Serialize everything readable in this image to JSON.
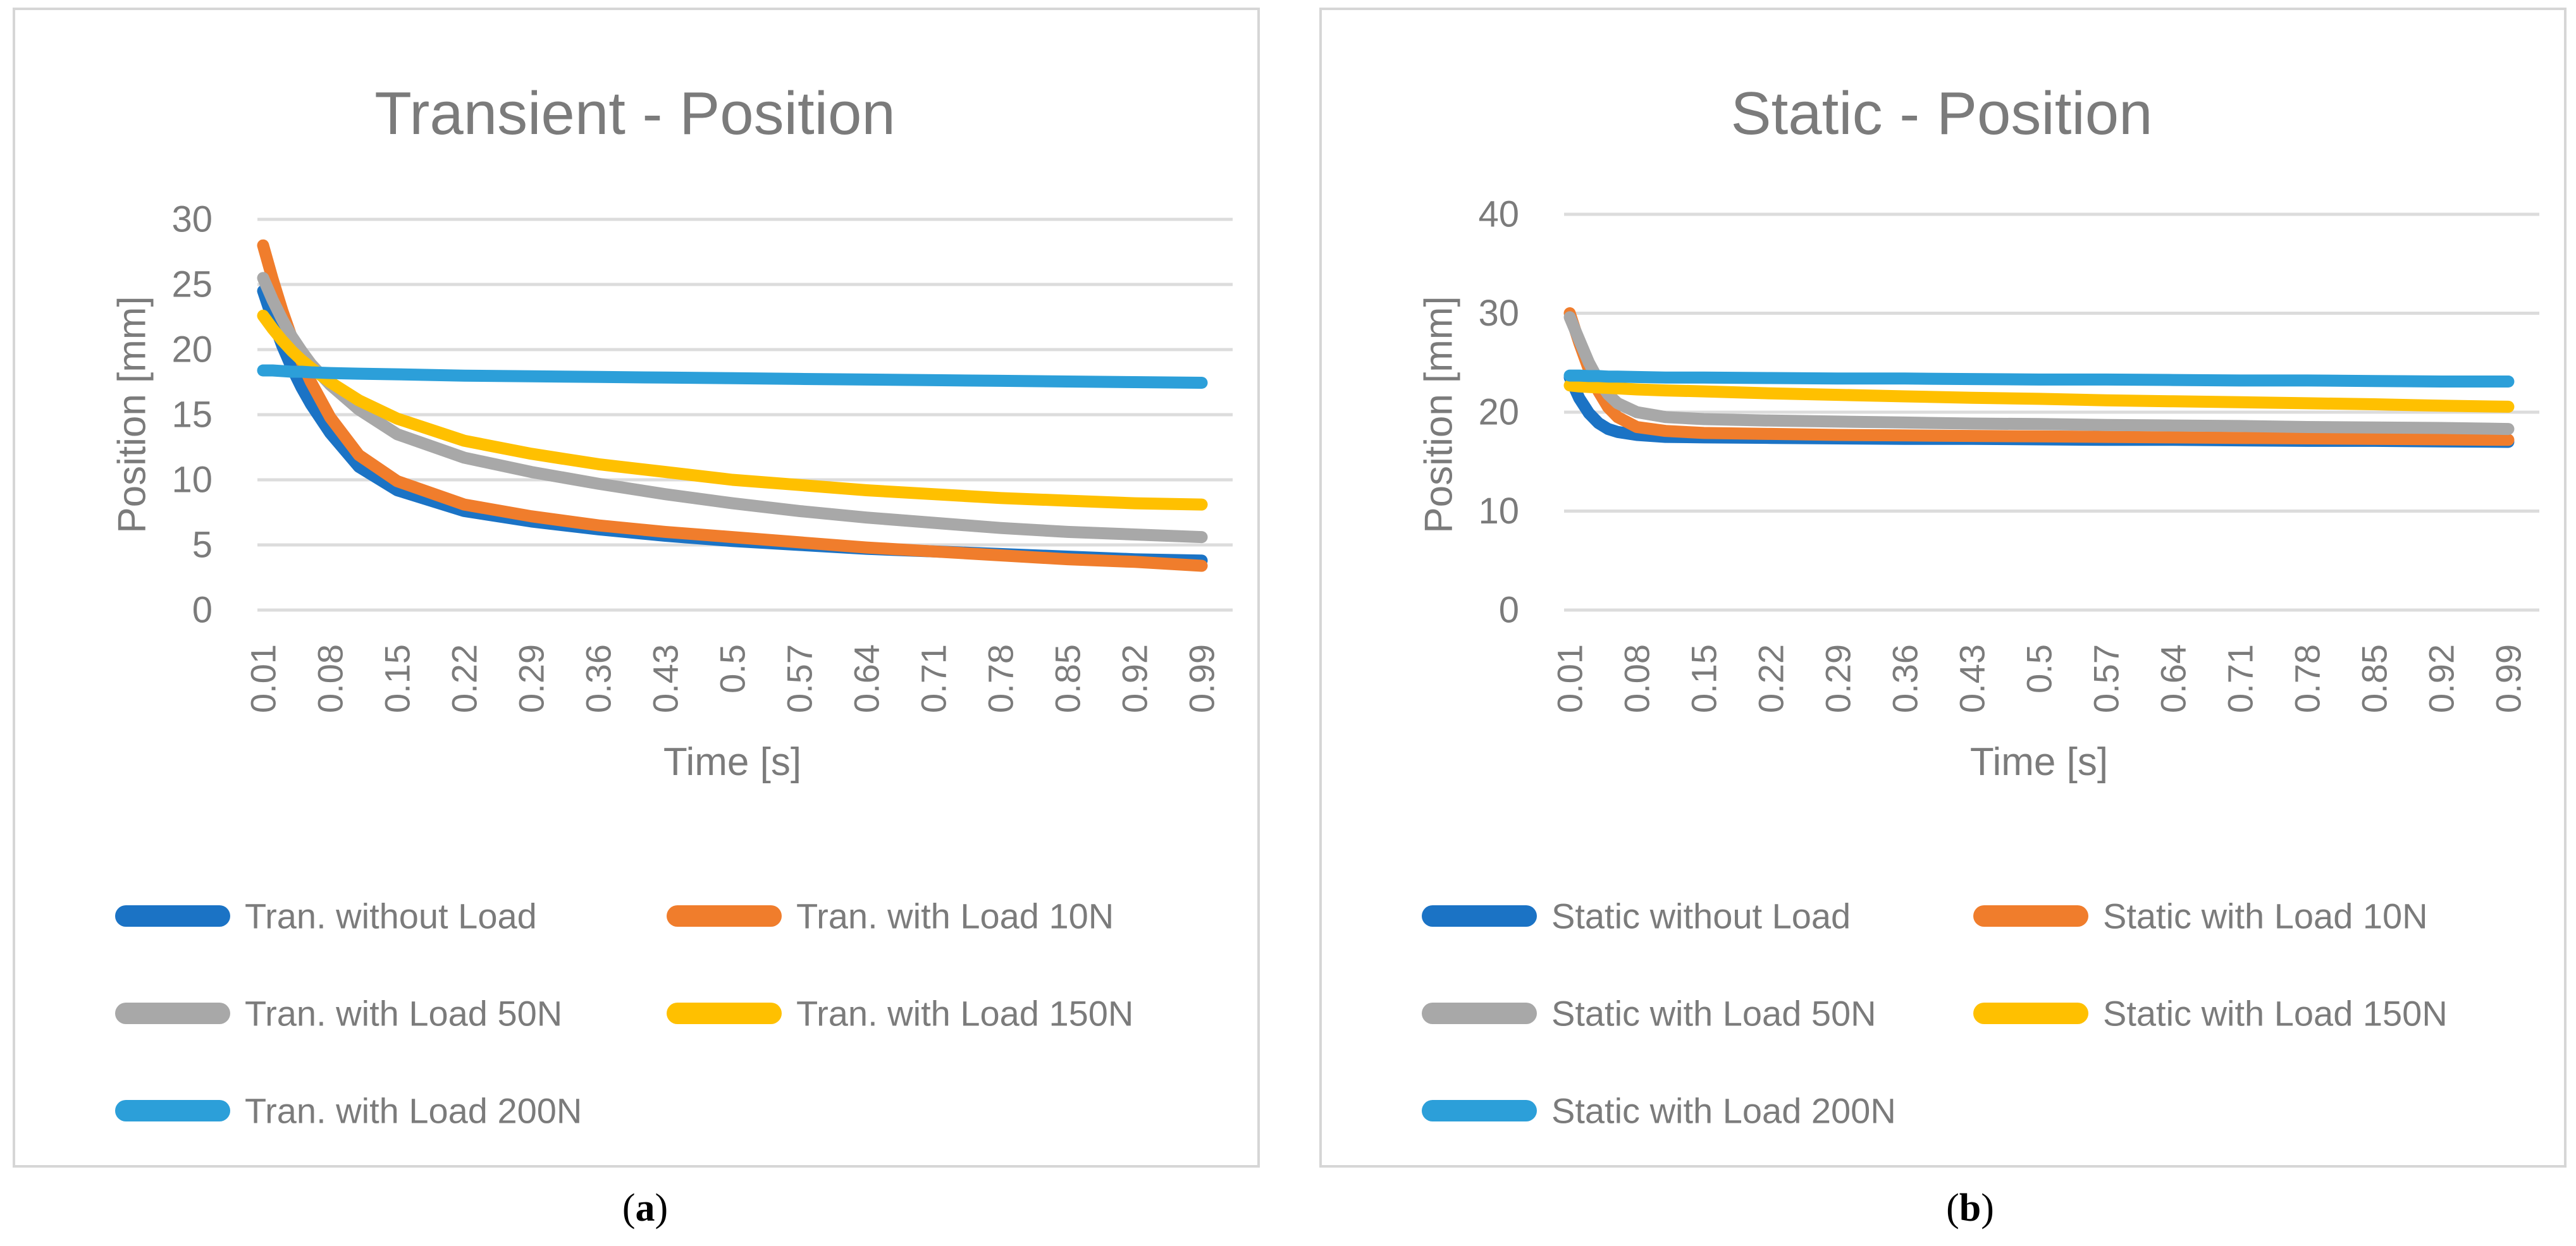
{
  "figure": {
    "captions": [
      {
        "open": "(",
        "letter": "a",
        "close": ")"
      },
      {
        "open": "(",
        "letter": "b",
        "close": ")"
      }
    ]
  },
  "colors": {
    "series_blue": "#1B73C5",
    "series_orange": "#F07D2C",
    "series_gray": "#A8A8A8",
    "series_yellow": "#FFC000",
    "series_lightblue": "#2C9FD9",
    "text_gray": "#7B7B7B",
    "gridline": "#DCDCDC",
    "panel_border": "#D6D6D6"
  },
  "chart_data": [
    {
      "type": "line",
      "panel": "a",
      "title": "Transient - Position",
      "xlabel": "Time [s]",
      "ylabel": "Position [mm]",
      "grid": true,
      "legend_position": "bottom",
      "ylim": [
        0,
        30
      ],
      "ytick_step": 5,
      "y_tick_labels": [
        "0",
        "5",
        "10",
        "15",
        "20",
        "25",
        "30"
      ],
      "x_tick_labels": [
        "0.01",
        "0.08",
        "0.15",
        "0.22",
        "0.29",
        "0.36",
        "0.43",
        "0.5",
        "0.57",
        "0.64",
        "0.71",
        "0.78",
        "0.85",
        "0.92",
        "0.99"
      ],
      "x": [
        0.01,
        0.02,
        0.03,
        0.04,
        0.05,
        0.06,
        0.08,
        0.11,
        0.15,
        0.22,
        0.29,
        0.36,
        0.43,
        0.5,
        0.57,
        0.64,
        0.71,
        0.78,
        0.85,
        0.92,
        0.99
      ],
      "series": [
        {
          "name": "Tran. without Load",
          "color": "series_blue",
          "values": [
            24.5,
            22.3,
            20.3,
            18.6,
            17.1,
            15.8,
            13.6,
            11.0,
            9.2,
            7.6,
            6.8,
            6.2,
            5.7,
            5.3,
            5.0,
            4.7,
            4.5,
            4.3,
            4.1,
            3.9,
            3.8
          ]
        },
        {
          "name": "Tran. with Load 10N",
          "color": "series_orange",
          "values": [
            28.0,
            25.4,
            23.0,
            20.9,
            19.1,
            17.5,
            14.8,
            11.9,
            9.9,
            8.1,
            7.2,
            6.5,
            6.0,
            5.6,
            5.2,
            4.8,
            4.5,
            4.2,
            3.9,
            3.7,
            3.4
          ]
        },
        {
          "name": "Tran. with Load 50N",
          "color": "series_gray",
          "values": [
            25.5,
            23.8,
            22.3,
            21.0,
            19.9,
            18.9,
            17.3,
            15.4,
            13.5,
            11.7,
            10.6,
            9.7,
            8.9,
            8.2,
            7.6,
            7.1,
            6.7,
            6.3,
            6.0,
            5.8,
            5.6
          ]
        },
        {
          "name": "Tran. with Load 150N",
          "color": "series_yellow",
          "values": [
            22.6,
            21.6,
            20.7,
            19.9,
            19.2,
            18.6,
            17.5,
            16.1,
            14.7,
            13.0,
            12.0,
            11.2,
            10.6,
            10.0,
            9.6,
            9.2,
            8.9,
            8.6,
            8.4,
            8.2,
            8.1
          ]
        },
        {
          "name": "Tran. with Load 200N",
          "color": "series_lightblue",
          "values": [
            18.4,
            18.4,
            18.35,
            18.3,
            18.3,
            18.25,
            18.2,
            18.15,
            18.1,
            18.0,
            17.95,
            17.9,
            17.85,
            17.8,
            17.75,
            17.7,
            17.65,
            17.6,
            17.55,
            17.5,
            17.45
          ]
        }
      ]
    },
    {
      "type": "line",
      "panel": "b",
      "title": "Static - Position",
      "xlabel": "Time [s]",
      "ylabel": "Position [mm]",
      "grid": true,
      "legend_position": "bottom",
      "ylim": [
        0,
        40
      ],
      "ytick_step": 10,
      "y_tick_labels": [
        "0",
        "10",
        "20",
        "30",
        "40"
      ],
      "x_tick_labels": [
        "0.01",
        "0.08",
        "0.15",
        "0.22",
        "0.29",
        "0.36",
        "0.43",
        "0.5",
        "0.57",
        "0.64",
        "0.71",
        "0.78",
        "0.85",
        "0.92",
        "0.99"
      ],
      "x": [
        0.01,
        0.02,
        0.03,
        0.04,
        0.05,
        0.06,
        0.08,
        0.11,
        0.15,
        0.22,
        0.29,
        0.36,
        0.43,
        0.5,
        0.57,
        0.64,
        0.71,
        0.78,
        0.85,
        0.92,
        0.99
      ],
      "series": [
        {
          "name": "Static without Load",
          "color": "series_blue",
          "values": [
            23.5,
            21.4,
            19.9,
            18.9,
            18.3,
            18.0,
            17.7,
            17.5,
            17.45,
            17.4,
            17.35,
            17.3,
            17.3,
            17.25,
            17.2,
            17.2,
            17.15,
            17.1,
            17.1,
            17.05,
            17.0
          ]
        },
        {
          "name": "Static with Load 10N",
          "color": "series_orange",
          "values": [
            30.0,
            27.0,
            24.3,
            22.1,
            20.5,
            19.5,
            18.5,
            18.1,
            17.9,
            17.8,
            17.7,
            17.65,
            17.6,
            17.55,
            17.5,
            17.45,
            17.4,
            17.35,
            17.3,
            17.25,
            17.2
          ]
        },
        {
          "name": "Static with Load 50N",
          "color": "series_gray",
          "values": [
            29.6,
            27.3,
            25.0,
            23.2,
            21.8,
            20.9,
            20.0,
            19.5,
            19.3,
            19.15,
            19.05,
            18.95,
            18.85,
            18.8,
            18.7,
            18.65,
            18.6,
            18.5,
            18.45,
            18.4,
            18.3
          ]
        },
        {
          "name": "Static with Load 150N",
          "color": "series_yellow",
          "values": [
            22.7,
            22.6,
            22.55,
            22.5,
            22.45,
            22.4,
            22.3,
            22.2,
            22.1,
            21.9,
            21.75,
            21.6,
            21.45,
            21.35,
            21.2,
            21.1,
            21.0,
            20.9,
            20.8,
            20.65,
            20.55
          ]
        },
        {
          "name": "Static with Load 200N",
          "color": "series_lightblue",
          "values": [
            23.7,
            23.7,
            23.65,
            23.65,
            23.6,
            23.6,
            23.55,
            23.5,
            23.5,
            23.45,
            23.4,
            23.4,
            23.35,
            23.3,
            23.3,
            23.25,
            23.2,
            23.2,
            23.15,
            23.1,
            23.1
          ]
        }
      ]
    }
  ]
}
